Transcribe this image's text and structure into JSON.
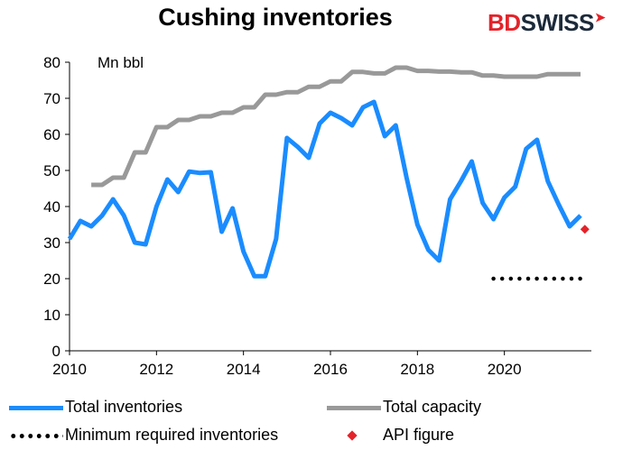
{
  "title": "Cushing inventories",
  "brand": {
    "bd": "BD",
    "swiss": "SWISS",
    "arrow_icon": "red-arrow-icon"
  },
  "chart_data": {
    "type": "line",
    "title": "Cushing inventories",
    "ylabel": "Mn bbl",
    "xlabel": "",
    "xlim": [
      2010,
      2022
    ],
    "ylim": [
      0,
      80
    ],
    "x_ticks": [
      "2010",
      "2012",
      "2014",
      "2016",
      "2018",
      "2020"
    ],
    "x_tick_values": [
      2010,
      2012,
      2014,
      2016,
      2018,
      2020
    ],
    "y_ticks": [
      "0",
      "10",
      "20",
      "30",
      "40",
      "50",
      "60",
      "70",
      "80"
    ],
    "y_tick_values": [
      0,
      10,
      20,
      30,
      40,
      50,
      60,
      70,
      80
    ],
    "grid": false,
    "legend_position": "bottom",
    "series": [
      {
        "name": "Total inventories",
        "style": "line",
        "color": "#1a8cff",
        "x": [
          2010.0,
          2010.25,
          2010.5,
          2010.75,
          2011.0,
          2011.25,
          2011.5,
          2011.75,
          2012.0,
          2012.25,
          2012.5,
          2012.75,
          2013.0,
          2013.25,
          2013.5,
          2013.75,
          2014.0,
          2014.25,
          2014.5,
          2014.75,
          2015.0,
          2015.25,
          2015.5,
          2015.75,
          2016.0,
          2016.25,
          2016.5,
          2016.75,
          2017.0,
          2017.25,
          2017.5,
          2017.75,
          2018.0,
          2018.25,
          2018.5,
          2018.75,
          2019.0,
          2019.25,
          2019.5,
          2019.75,
          2020.0,
          2020.25,
          2020.5,
          2020.75,
          2021.0,
          2021.25,
          2021.5,
          2021.75
        ],
        "y": [
          31,
          36,
          34.5,
          37.5,
          42,
          37.5,
          30,
          29.5,
          40,
          47.5,
          44,
          49.7,
          49.3,
          49.5,
          33,
          39.5,
          27.5,
          20.7,
          20.7,
          31,
          59,
          56.5,
          53.5,
          63,
          66,
          64.5,
          62.5,
          67.5,
          69,
          59.5,
          62.5,
          48,
          35,
          28,
          25,
          42,
          47,
          52.5,
          41,
          36.5,
          42.5,
          45.5,
          56,
          58.5,
          47,
          40.5,
          34.5,
          37.5
        ]
      },
      {
        "name": "Total capacity",
        "style": "line",
        "color": "#999999",
        "x": [
          2010.5,
          2010.75,
          2011.0,
          2011.25,
          2011.5,
          2011.75,
          2012.0,
          2012.25,
          2012.5,
          2012.75,
          2013.0,
          2013.25,
          2013.5,
          2013.75,
          2014.0,
          2014.25,
          2014.5,
          2014.75,
          2015.0,
          2015.25,
          2015.5,
          2015.75,
          2016.0,
          2016.25,
          2016.5,
          2016.75,
          2017.0,
          2017.25,
          2017.5,
          2017.75,
          2018.0,
          2018.25,
          2018.5,
          2018.75,
          2019.0,
          2019.25,
          2019.5,
          2019.75,
          2020.0,
          2020.25,
          2020.5,
          2020.75,
          2021.0,
          2021.25,
          2021.5,
          2021.75
        ],
        "y": [
          46,
          46,
          48,
          48,
          55,
          55,
          62,
          62,
          64,
          64,
          65,
          65,
          66,
          66,
          67.5,
          67.5,
          71,
          71,
          71.7,
          71.7,
          73.2,
          73.2,
          74.7,
          74.7,
          77.3,
          77.3,
          76.9,
          76.9,
          78.5,
          78.5,
          77.6,
          77.6,
          77.4,
          77.4,
          77.2,
          77.2,
          76.3,
          76.3,
          76,
          76,
          76,
          76,
          76.7,
          76.7,
          76.7,
          76.7
        ]
      },
      {
        "name": "Minimum required inventories",
        "style": "dotted",
        "color": "#000000",
        "x": [
          2019.75,
          2021.75
        ],
        "y": [
          20,
          20
        ]
      },
      {
        "name": "API figure",
        "style": "marker",
        "color": "#e3232a",
        "x": [
          2021.85
        ],
        "y": [
          33.7
        ]
      }
    ]
  }
}
